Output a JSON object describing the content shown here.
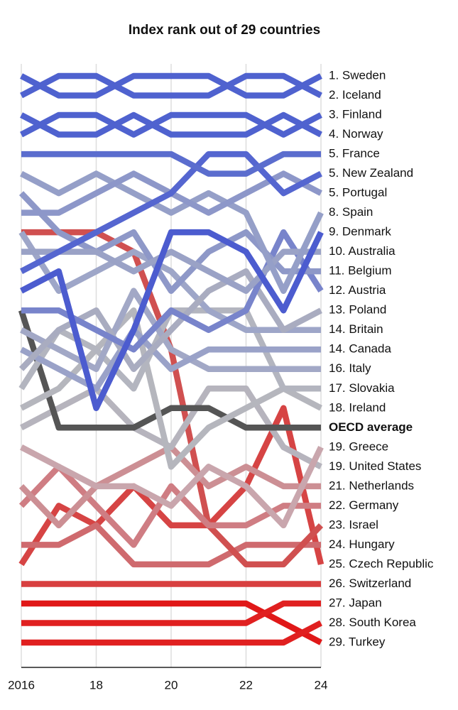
{
  "chart_data": {
    "type": "bump",
    "title": "Index rank out of 29 countries",
    "x": [
      2016,
      2017,
      2018,
      2019,
      2020,
      2021,
      2022,
      2023,
      2024
    ],
    "xlim": [
      2016,
      2024
    ],
    "xticks": [
      2016,
      {
        "value": 2018,
        "label": "18"
      },
      {
        "value": 2020,
        "label": "20"
      },
      {
        "value": 2022,
        "label": "22"
      },
      {
        "value": 2024,
        "label": "24"
      }
    ],
    "ylim": [
      1,
      30
    ],
    "y_reversed": true,
    "grid": true,
    "series": [
      {
        "name": "1. Sweden",
        "color": "#4f62cf",
        "values": [
          1,
          2,
          2,
          1,
          1,
          1,
          2,
          2,
          1
        ]
      },
      {
        "name": "2. Iceland",
        "color": "#4f62cf",
        "values": [
          2,
          1,
          1,
          2,
          2,
          2,
          1,
          1,
          2
        ]
      },
      {
        "name": "3. Finland",
        "color": "#4f62cf",
        "values": [
          4,
          3,
          3,
          4,
          3,
          3,
          3,
          4,
          3
        ]
      },
      {
        "name": "4. Norway",
        "color": "#4f62cf",
        "values": [
          3,
          4,
          4,
          3,
          4,
          4,
          4,
          3,
          4
        ]
      },
      {
        "name": "5. France",
        "color": "#5b6dce",
        "values": [
          5,
          5,
          5,
          5,
          5,
          6,
          6,
          5,
          5
        ]
      },
      {
        "name": "5. New Zealand",
        "color": "#5566d0",
        "values": [
          11,
          10,
          9,
          8,
          7,
          5,
          5,
          7,
          6
        ]
      },
      {
        "name": "5. Portugal",
        "color": "#8d97c9",
        "values": [
          8,
          8,
          7,
          6,
          7,
          8,
          7,
          6,
          7
        ]
      },
      {
        "name": "8. Spain",
        "color": "#959fc8",
        "values": [
          6,
          7,
          6,
          7,
          8,
          7,
          8,
          12,
          8
        ]
      },
      {
        "name": "9. Denmark",
        "color": "#4c5ccf",
        "values": [
          12,
          11,
          18,
          14,
          9,
          9,
          10,
          13,
          9
        ]
      },
      {
        "name": "10. Australia",
        "color": "#9aa2c6",
        "values": [
          10,
          10,
          10,
          11,
          10,
          11,
          12,
          10,
          10
        ]
      },
      {
        "name": "11. Belgium",
        "color": "#8e98c8",
        "values": [
          7,
          9,
          10,
          9,
          12,
          10,
          9,
          11,
          11
        ]
      },
      {
        "name": "12. Austria",
        "color": "#7884cb",
        "values": [
          13,
          13,
          14,
          15,
          13,
          14,
          13,
          9,
          12
        ]
      },
      {
        "name": "13. Poland",
        "color": "#a9acc0",
        "values": [
          16,
          14,
          13,
          16,
          14,
          12,
          11,
          14,
          13
        ]
      },
      {
        "name": "14. Britain",
        "color": "#9ea6c8",
        "values": [
          9,
          12,
          11,
          10,
          11,
          13,
          14,
          14,
          14
        ]
      },
      {
        "name": "14. Canada",
        "color": "#9aa2c8",
        "values": [
          15,
          16,
          17,
          14,
          16,
          15,
          15,
          15,
          15
        ]
      },
      {
        "name": "16. Italy",
        "color": "#a2a8c6",
        "values": [
          14,
          15,
          16,
          12,
          15,
          16,
          16,
          16,
          16
        ]
      },
      {
        "name": "17. Slovakia",
        "color": "#b3b5bf",
        "values": [
          17,
          14,
          15,
          17,
          13,
          13,
          13,
          17,
          17
        ]
      },
      {
        "name": "18. Ireland",
        "color": "#b5b6bd",
        "values": [
          18,
          17,
          15,
          13,
          21,
          19,
          18,
          17,
          18
        ]
      },
      {
        "name": "OECD average",
        "color": "#555555",
        "emphasis": true,
        "values": [
          13,
          19,
          19,
          19,
          18,
          18,
          19,
          19,
          19
        ]
      },
      {
        "name": "19. Greece",
        "color": "#c9a6ad",
        "values": [
          20,
          21,
          22,
          22,
          23,
          21,
          22,
          24,
          20
        ]
      },
      {
        "name": "19. United States",
        "color": "#b6b4bd",
        "values": [
          19,
          18,
          17,
          19,
          20,
          17,
          17,
          20,
          21
        ]
      },
      {
        "name": "21. Netherlands",
        "color": "#cc8f94",
        "values": [
          22,
          24,
          22,
          21,
          20,
          22,
          21,
          22,
          22
        ]
      },
      {
        "name": "22. Germany",
        "color": "#cf7d83",
        "values": [
          23,
          21,
          23,
          25,
          22,
          24,
          24,
          23,
          23
        ]
      },
      {
        "name": "23. Israel",
        "color": "#d05050",
        "values": [
          9,
          9,
          9,
          10,
          15,
          24,
          26,
          26,
          24
        ]
      },
      {
        "name": "24. Hungary",
        "color": "#cf6a6e",
        "values": [
          25,
          25,
          24,
          26,
          26,
          26,
          25,
          25,
          25
        ]
      },
      {
        "name": "25. Czech Republic",
        "color": "#d64444",
        "values": [
          26,
          23,
          24,
          22,
          24,
          24,
          22,
          18,
          26
        ]
      },
      {
        "name": "26. Switzerland",
        "color": "#d84040",
        "values": [
          27,
          27,
          27,
          27,
          27,
          27,
          27,
          27,
          27
        ]
      },
      {
        "name": "27. Japan",
        "color": "#e02020",
        "values": [
          29,
          29,
          29,
          29,
          29,
          29,
          29,
          28,
          28
        ]
      },
      {
        "name": "28. South Korea",
        "color": "#e02020",
        "values": [
          30,
          30,
          30,
          30,
          30,
          30,
          30,
          30,
          29
        ]
      },
      {
        "name": "29. Turkey",
        "color": "#e01818",
        "values": [
          28,
          28,
          28,
          28,
          28,
          28,
          28,
          29,
          30
        ]
      }
    ]
  }
}
